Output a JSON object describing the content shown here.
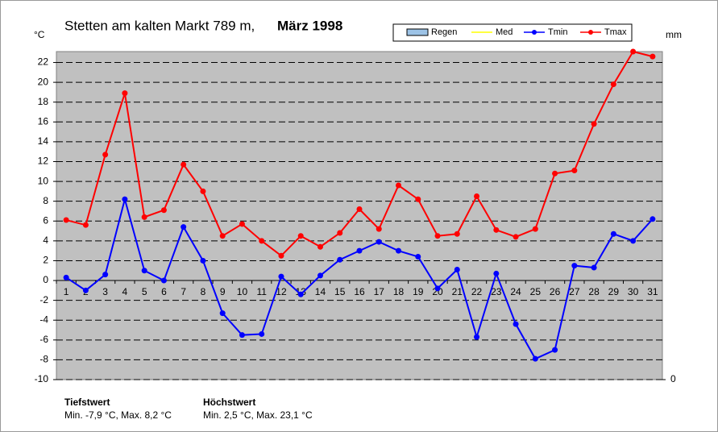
{
  "chart_data": {
    "type": "line",
    "title": "Stetten am kalten Markt 789 m,",
    "title_bold": "März 1998",
    "y_label": "°C",
    "y2_label": "mm",
    "categories": [
      "1",
      "2",
      "3",
      "4",
      "5",
      "6",
      "7",
      "8",
      "9",
      "10",
      "11",
      "12",
      "13",
      "14",
      "15",
      "16",
      "17",
      "18",
      "19",
      "20",
      "21",
      "22",
      "23",
      "24",
      "25",
      "26",
      "27",
      "28",
      "29",
      "30",
      "31"
    ],
    "series": [
      {
        "name": "Regen",
        "color": "#9dc3e6",
        "values": [
          null,
          null,
          null,
          null,
          null,
          null,
          null,
          null,
          null,
          null,
          null,
          null,
          null,
          null,
          null,
          null,
          null,
          null,
          null,
          null,
          null,
          null,
          null,
          null,
          null,
          null,
          null,
          null,
          null,
          null,
          null
        ]
      },
      {
        "name": "Med",
        "color": "#ffff00",
        "values": [
          null,
          null,
          null,
          null,
          null,
          null,
          null,
          null,
          null,
          null,
          null,
          null,
          null,
          null,
          null,
          null,
          null,
          null,
          null,
          null,
          null,
          null,
          null,
          null,
          null,
          null,
          null,
          null,
          null,
          null,
          null
        ]
      },
      {
        "name": "Tmin",
        "color": "#0000ff",
        "values": [
          0.3,
          -1.0,
          0.6,
          8.2,
          1.0,
          0.0,
          5.4,
          2.0,
          -3.3,
          -5.5,
          -5.4,
          0.4,
          -1.4,
          0.5,
          2.1,
          3.0,
          3.9,
          3.0,
          2.4,
          -0.8,
          1.1,
          -5.7,
          0.7,
          -4.4,
          -7.9,
          -7.0,
          1.5,
          1.3,
          4.7,
          4.0,
          6.2
        ]
      },
      {
        "name": "Tmax",
        "color": "#ff0000",
        "values": [
          6.1,
          5.6,
          12.7,
          18.9,
          6.4,
          7.1,
          11.7,
          9.0,
          4.5,
          5.7,
          4.0,
          2.5,
          4.5,
          3.4,
          4.8,
          7.2,
          5.2,
          9.6,
          8.2,
          4.5,
          4.7,
          8.5,
          5.1,
          4.4,
          5.2,
          10.8,
          11.1,
          15.8,
          19.8,
          23.1,
          22.6
        ]
      }
    ],
    "ylim": [
      -10,
      23.1
    ],
    "yticks": [
      -10,
      -8,
      -6,
      -4,
      -2,
      0,
      2,
      4,
      6,
      8,
      10,
      12,
      14,
      16,
      18,
      20,
      22
    ],
    "y2ticks": [
      0
    ],
    "grid": true,
    "background": "#c0c0c0",
    "annotations": [
      {
        "title": "Tiefstwert",
        "text": "Min. -7,9 °C, Max. 8,2 °C"
      },
      {
        "title": "Höchstwert",
        "text": "Min. 2,5 °C, Max. 23,1 °C"
      }
    ]
  }
}
